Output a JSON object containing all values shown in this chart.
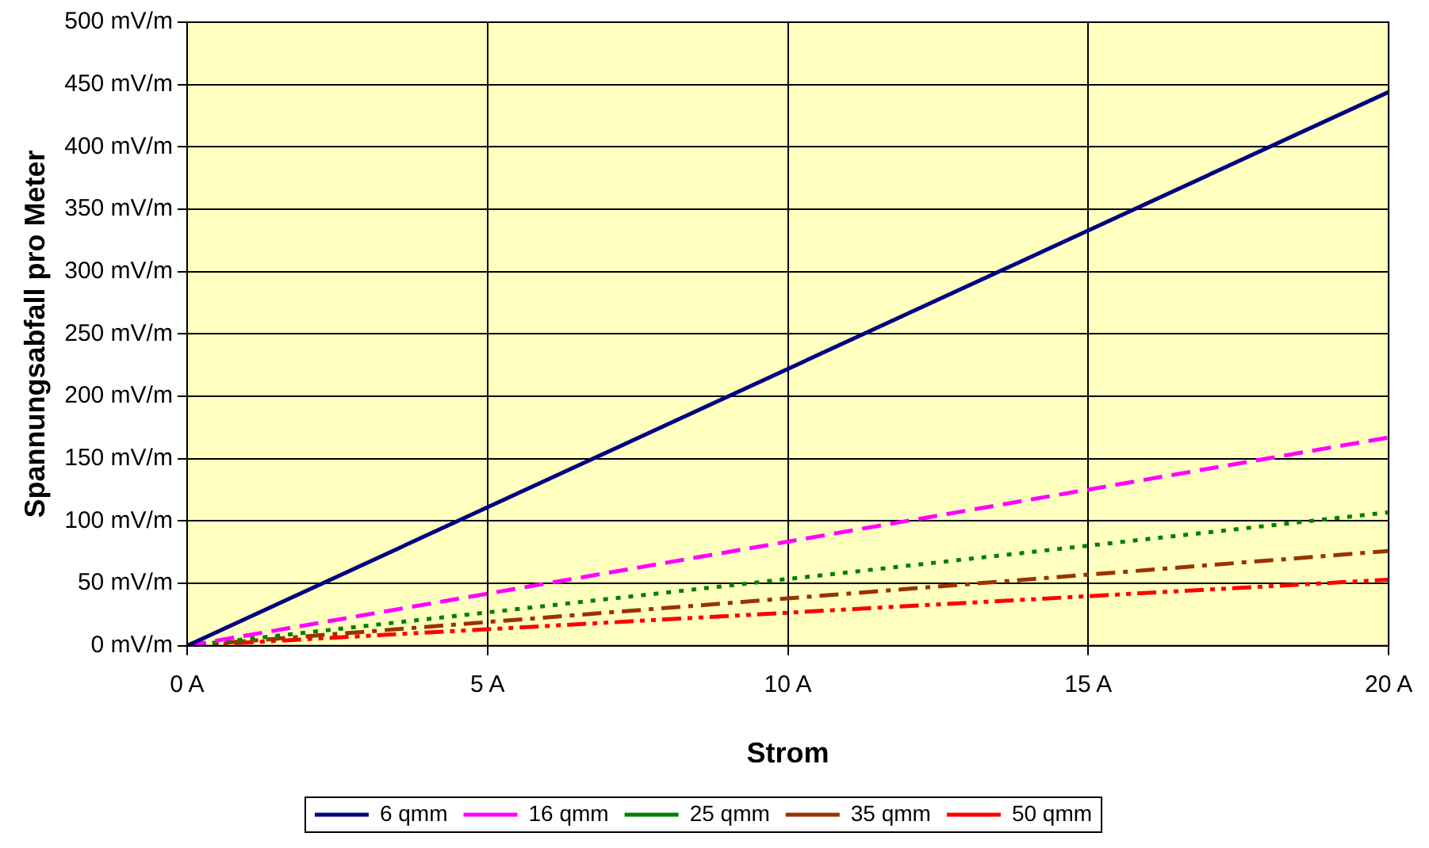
{
  "chart_data": {
    "type": "line",
    "xlabel": "Strom",
    "ylabel": "Spannungsabfall pro Meter",
    "x": [
      0,
      20
    ],
    "series": [
      {
        "name": "6 qmm",
        "color": "#000080",
        "values": [
          0,
          444
        ],
        "line_style": "solid"
      },
      {
        "name": "16 qmm",
        "color": "#ff00ff",
        "values": [
          0,
          167
        ],
        "line_style": "dashed"
      },
      {
        "name": "25 qmm",
        "color": "#008000",
        "values": [
          0,
          107
        ],
        "line_style": "dotted"
      },
      {
        "name": "35 qmm",
        "color": "#993300",
        "values": [
          0,
          76
        ],
        "line_style": "dashdot"
      },
      {
        "name": "50 qmm",
        "color": "#ff0000",
        "values": [
          0,
          53
        ],
        "line_style": "dashdotdot"
      }
    ],
    "xlim": [
      0,
      20
    ],
    "xticks": [
      {
        "value": 0,
        "label": "0 A"
      },
      {
        "value": 5,
        "label": "5 A"
      },
      {
        "value": 10,
        "label": "10 A"
      },
      {
        "value": 15,
        "label": "15 A"
      },
      {
        "value": 20,
        "label": "20 A"
      }
    ],
    "ylim": [
      0,
      500
    ],
    "yticks": [
      {
        "value": 0,
        "label": "0 mV/m"
      },
      {
        "value": 50,
        "label": "50 mV/m"
      },
      {
        "value": 100,
        "label": "100 mV/m"
      },
      {
        "value": 150,
        "label": "150 mV/m"
      },
      {
        "value": 200,
        "label": "200 mV/m"
      },
      {
        "value": 250,
        "label": "250 mV/m"
      },
      {
        "value": 300,
        "label": "300 mV/m"
      },
      {
        "value": 350,
        "label": "350 mV/m"
      },
      {
        "value": 400,
        "label": "400 mV/m"
      },
      {
        "value": 450,
        "label": "450 mV/m"
      },
      {
        "value": 500,
        "label": "500 mV/m"
      }
    ],
    "grid": true,
    "legend": "bottom",
    "marker": "none"
  }
}
